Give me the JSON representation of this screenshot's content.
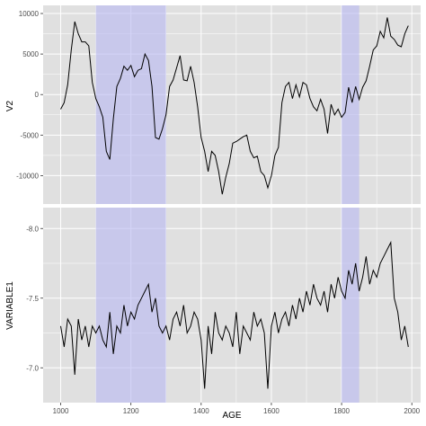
{
  "chart_data": [
    {
      "type": "line",
      "ylabel": "V2",
      "xlabel": "",
      "xlim": [
        950,
        2025
      ],
      "ylim": [
        -13500,
        11000
      ],
      "yticks": [
        10000,
        5000,
        0,
        -5000,
        -10000
      ],
      "ytick_labels": [
        "10000",
        "5000",
        "0",
        "-5000",
        "-10000"
      ],
      "grid": true,
      "shaded_regions": [
        [
          1100,
          1300
        ],
        [
          1800,
          1850
        ]
      ],
      "colors": {
        "panel": "#e0e0e0",
        "grid": "#ffffff",
        "line": "#000000",
        "shade": "#b8b8f2"
      },
      "x": [
        1000,
        1010,
        1020,
        1030,
        1040,
        1050,
        1060,
        1070,
        1080,
        1090,
        1100,
        1110,
        1120,
        1130,
        1140,
        1150,
        1160,
        1170,
        1180,
        1190,
        1200,
        1210,
        1220,
        1230,
        1240,
        1250,
        1260,
        1270,
        1280,
        1290,
        1300,
        1310,
        1320,
        1330,
        1340,
        1350,
        1360,
        1370,
        1380,
        1390,
        1400,
        1410,
        1420,
        1430,
        1440,
        1450,
        1460,
        1470,
        1480,
        1490,
        1500,
        1510,
        1520,
        1530,
        1540,
        1550,
        1560,
        1570,
        1580,
        1590,
        1600,
        1610,
        1620,
        1630,
        1640,
        1650,
        1660,
        1670,
        1680,
        1690,
        1700,
        1710,
        1720,
        1730,
        1740,
        1750,
        1760,
        1770,
        1780,
        1790,
        1800,
        1810,
        1820,
        1830,
        1840,
        1850,
        1860,
        1870,
        1880,
        1890,
        1900,
        1910,
        1920,
        1930,
        1940,
        1950,
        1960,
        1970,
        1980,
        1990
      ],
      "values": [
        -1800,
        -1000,
        1200,
        5500,
        9000,
        7500,
        6500,
        6500,
        6000,
        1500,
        -500,
        -1500,
        -2800,
        -7000,
        -8000,
        -3000,
        1000,
        2000,
        3500,
        3000,
        3600,
        2200,
        3000,
        3200,
        5000,
        4200,
        1000,
        -5300,
        -5500,
        -4200,
        -2500,
        1000,
        1800,
        3300,
        4800,
        1800,
        1700,
        3500,
        1500,
        -1500,
        -5300,
        -7000,
        -9500,
        -7000,
        -7500,
        -9500,
        -12300,
        -10200,
        -8500,
        -6000,
        -5800,
        -5500,
        -5200,
        -5000,
        -7000,
        -7800,
        -7600,
        -9500,
        -10000,
        -11500,
        -10000,
        -7500,
        -6500,
        -1000,
        1000,
        1500,
        -500,
        1200,
        -300,
        1500,
        1200,
        -500,
        -1500,
        -2000,
        -600,
        -1800,
        -4800,
        -1200,
        -2500,
        -1800,
        -2800,
        -2200,
        900,
        -1000,
        1000,
        -600,
        900,
        1700,
        3500,
        5500,
        6000,
        7800,
        7000,
        9500,
        7200,
        6800,
        6100,
        5900,
        7500,
        8500
      ]
    },
    {
      "type": "line",
      "ylabel": "VARIABLE1",
      "xlabel": "AGE",
      "xlim": [
        950,
        2025
      ],
      "ylim": [
        -6.75,
        -8.15
      ],
      "yticks": [
        -8.0,
        -7.5,
        -7.0
      ],
      "ytick_labels": [
        "-8.0",
        "-7.5",
        "-7.0"
      ],
      "xticks": [
        1000,
        1200,
        1400,
        1600,
        1800,
        2000
      ],
      "xtick_labels": [
        "1000",
        "1200",
        "1400",
        "1600",
        "1800",
        "2000"
      ],
      "grid": true,
      "shaded_regions": [
        [
          1100,
          1300
        ],
        [
          1800,
          1850
        ]
      ],
      "colors": {
        "panel": "#e0e0e0",
        "grid": "#ffffff",
        "line": "#000000",
        "shade": "#b8b8f2"
      },
      "x": [
        1000,
        1010,
        1020,
        1030,
        1040,
        1050,
        1060,
        1070,
        1080,
        1090,
        1100,
        1110,
        1120,
        1130,
        1140,
        1150,
        1160,
        1170,
        1180,
        1190,
        1200,
        1210,
        1220,
        1230,
        1240,
        1250,
        1260,
        1270,
        1280,
        1290,
        1300,
        1310,
        1320,
        1330,
        1340,
        1350,
        1360,
        1370,
        1380,
        1390,
        1400,
        1410,
        1420,
        1430,
        1440,
        1450,
        1460,
        1470,
        1480,
        1490,
        1500,
        1510,
        1520,
        1530,
        1540,
        1550,
        1560,
        1570,
        1580,
        1590,
        1600,
        1610,
        1620,
        1630,
        1640,
        1650,
        1660,
        1670,
        1680,
        1690,
        1700,
        1710,
        1720,
        1730,
        1740,
        1750,
        1760,
        1770,
        1780,
        1790,
        1800,
        1810,
        1820,
        1830,
        1840,
        1850,
        1860,
        1870,
        1880,
        1890,
        1900,
        1910,
        1920,
        1930,
        1940,
        1950,
        1960,
        1970,
        1980,
        1990
      ],
      "values": [
        -7.3,
        -7.15,
        -7.35,
        -7.3,
        -6.95,
        -7.35,
        -7.2,
        -7.3,
        -7.15,
        -7.3,
        -7.25,
        -7.3,
        -7.2,
        -7.15,
        -7.4,
        -7.1,
        -7.3,
        -7.25,
        -7.45,
        -7.3,
        -7.4,
        -7.35,
        -7.45,
        -7.5,
        -7.55,
        -7.6,
        -7.4,
        -7.5,
        -7.3,
        -7.25,
        -7.3,
        -7.2,
        -7.35,
        -7.4,
        -7.3,
        -7.45,
        -7.25,
        -7.3,
        -7.4,
        -7.35,
        -7.2,
        -6.85,
        -7.3,
        -7.1,
        -7.4,
        -7.25,
        -7.2,
        -7.3,
        -7.25,
        -7.15,
        -7.4,
        -7.1,
        -7.3,
        -7.25,
        -7.2,
        -7.4,
        -7.3,
        -7.35,
        -7.25,
        -6.85,
        -7.3,
        -7.4,
        -7.25,
        -7.35,
        -7.4,
        -7.3,
        -7.45,
        -7.35,
        -7.5,
        -7.4,
        -7.55,
        -7.45,
        -7.6,
        -7.5,
        -7.45,
        -7.55,
        -7.4,
        -7.6,
        -7.5,
        -7.65,
        -7.55,
        -7.5,
        -7.7,
        -7.6,
        -7.75,
        -7.55,
        -7.65,
        -7.8,
        -7.6,
        -7.7,
        -7.65,
        -7.75,
        -7.8,
        -7.85,
        -7.9,
        -7.5,
        -7.4,
        -7.2,
        -7.3,
        -7.15
      ]
    }
  ]
}
